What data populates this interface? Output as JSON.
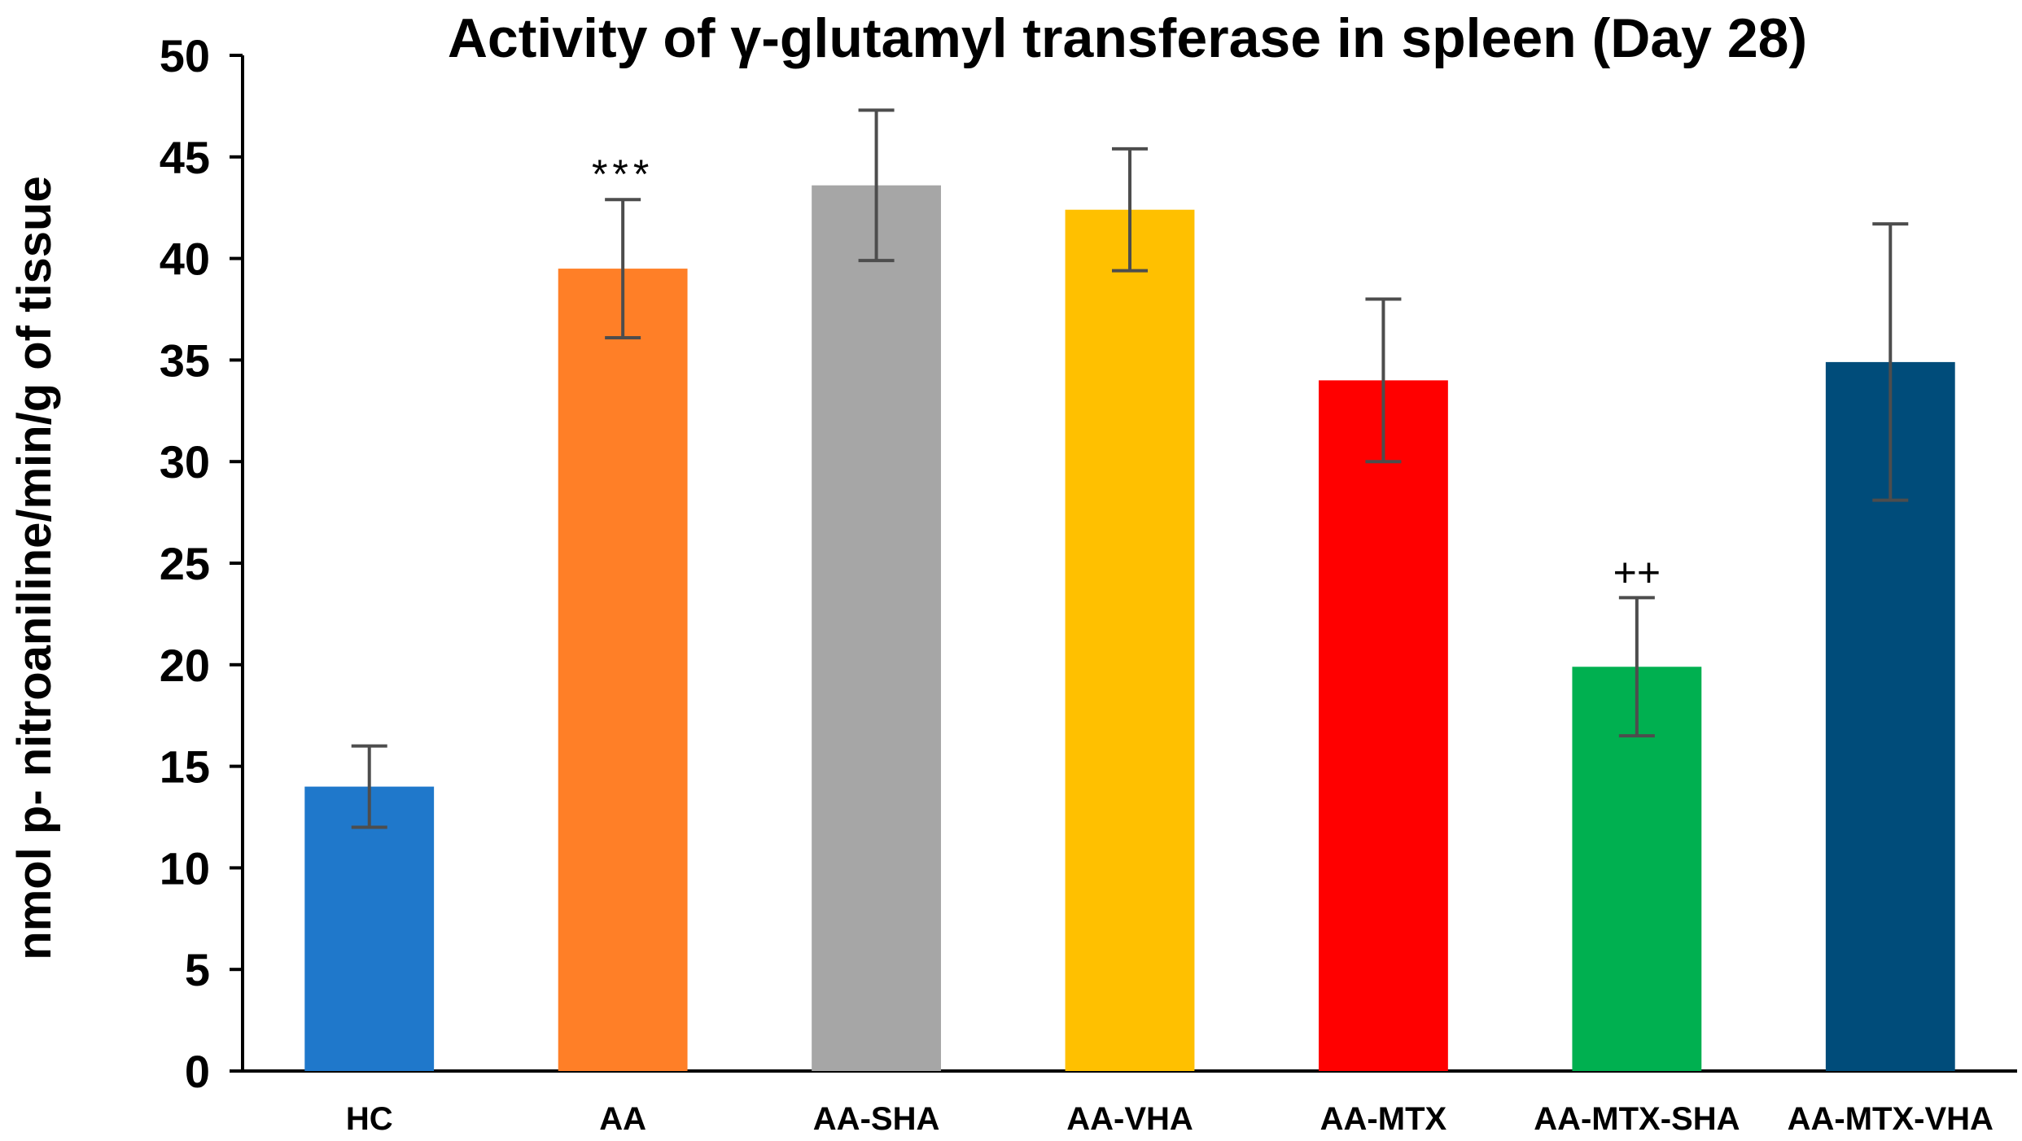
{
  "chart_data": {
    "type": "bar",
    "title": "Activity of γ-glutamyl  transferase in spleen (Day 28)",
    "ylabel": "nmol p- nitroaniline/min/g of tissue",
    "xlabel": "",
    "ylim": [
      0,
      50
    ],
    "yticks": [
      0,
      5,
      10,
      15,
      20,
      25,
      30,
      35,
      40,
      45,
      50
    ],
    "grid": false,
    "legend": "none",
    "categories": [
      "HC",
      "AA",
      "AA-SHA",
      "AA-VHA",
      "AA-MTX",
      "AA-MTX-SHA",
      "AA-MTX-VHA"
    ],
    "values": [
      14.0,
      39.5,
      43.6,
      42.4,
      34.0,
      19.9,
      34.9
    ],
    "errors": [
      2.0,
      3.4,
      3.7,
      3.0,
      4.0,
      3.4,
      6.8
    ],
    "colors": [
      "#1F78CB",
      "#FF7F27",
      "#A6A6A6",
      "#FFC000",
      "#FF0000",
      "#00B050",
      "#004C7A"
    ],
    "annotations": [
      {
        "category": "AA",
        "text": "***"
      },
      {
        "category": "AA-MTX-SHA",
        "text": "++"
      }
    ],
    "error_bar_color": "#4D4D4D",
    "axis_color": "#000000"
  }
}
